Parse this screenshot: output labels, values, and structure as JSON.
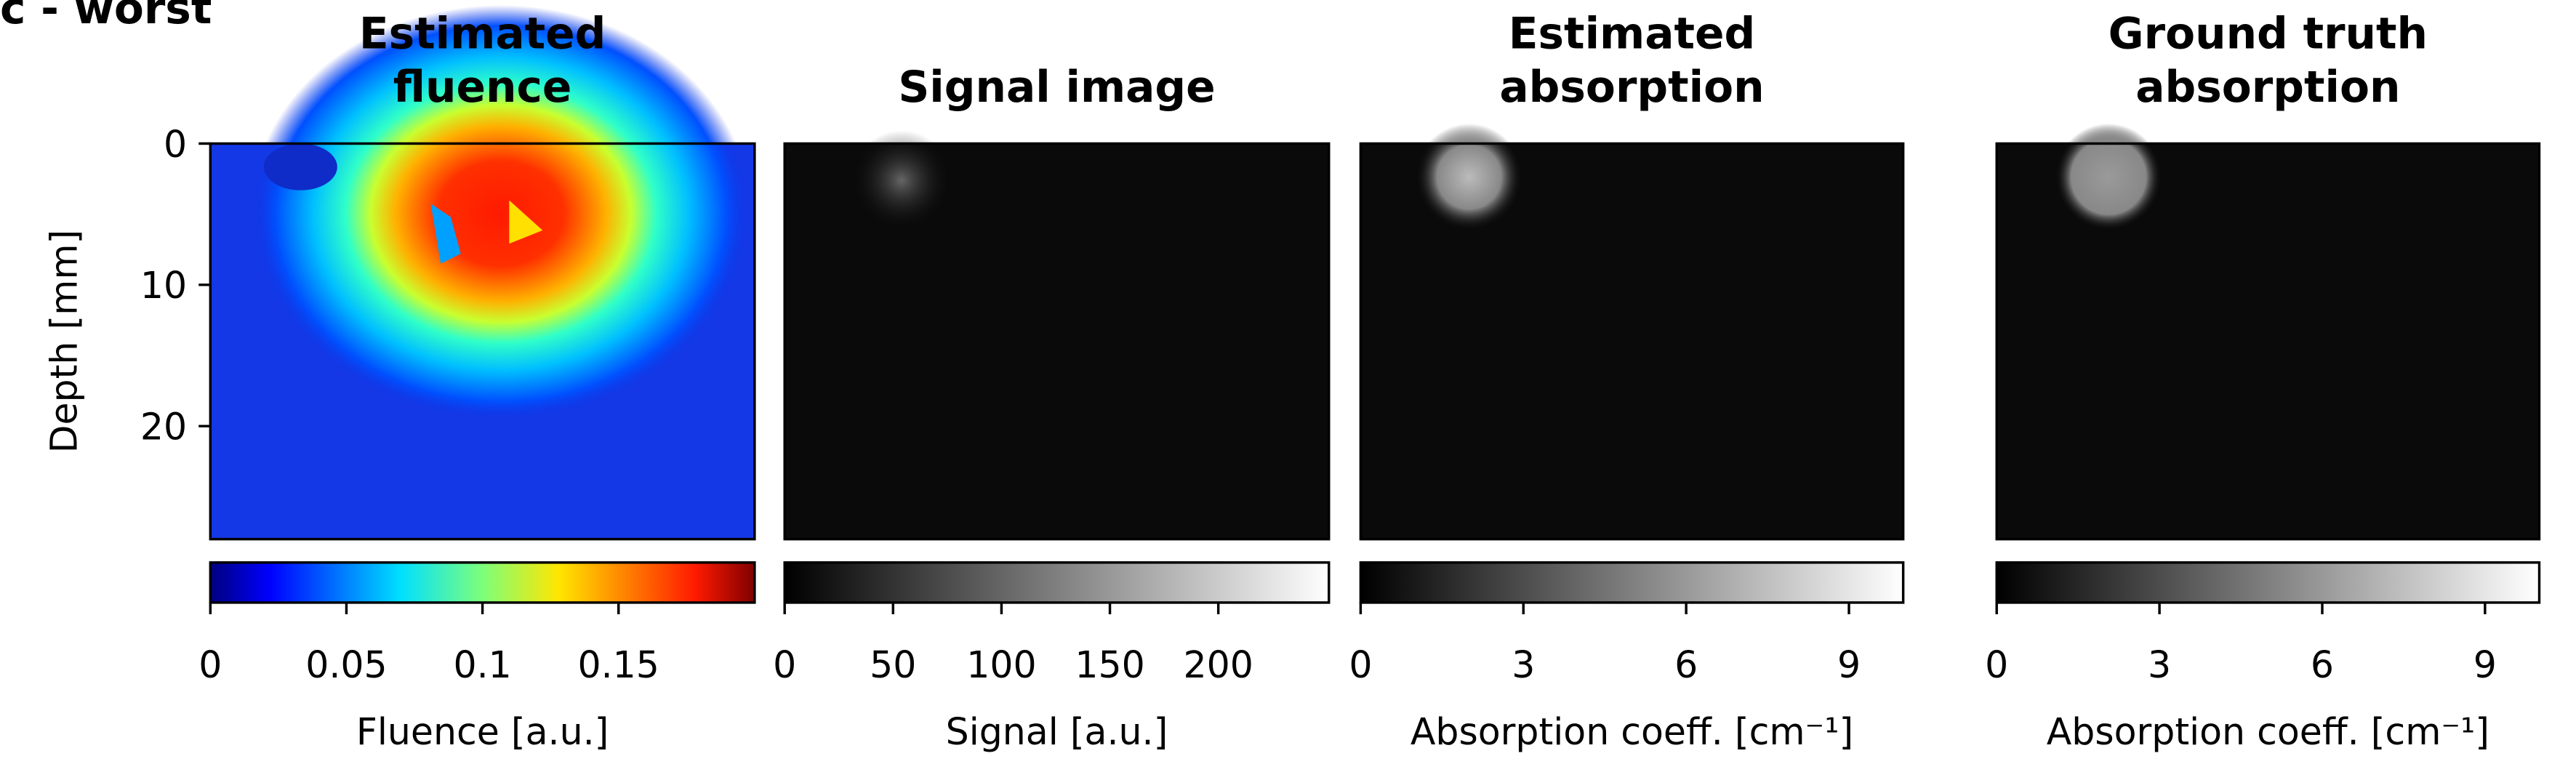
{
  "panel_label": "c - worst",
  "chart_data": [
    {
      "type": "heatmap",
      "title": "Estimated\nfluence",
      "ylabel": "Depth [mm]",
      "ylim": [
        0,
        28
      ],
      "yticks": [
        0,
        10,
        20
      ],
      "colormap": "jet",
      "colorbar_label": "Fluence [a.u.]",
      "colorbar_lim": [
        0,
        0.2
      ],
      "colorbar_ticks": [
        0,
        0.05,
        0.1,
        0.15
      ]
    },
    {
      "type": "heatmap",
      "title": "Signal image",
      "ylim": [
        0,
        28
      ],
      "colormap": "gray",
      "colorbar_label": "Signal [a.u.]",
      "colorbar_lim": [
        0,
        251
      ],
      "colorbar_ticks": [
        0,
        50,
        100,
        150,
        200
      ]
    },
    {
      "type": "heatmap",
      "title": "Estimated\nabsorption",
      "ylim": [
        0,
        28
      ],
      "colormap": "gray",
      "colorbar_label": "Absorption coeff. [cm⁻¹]",
      "colorbar_lim": [
        0,
        10
      ],
      "colorbar_ticks": [
        0,
        3,
        6,
        9
      ]
    },
    {
      "type": "heatmap",
      "title": "Ground truth\nabsorption",
      "ylim": [
        0,
        28
      ],
      "colormap": "gray",
      "colorbar_label": "Absorption coeff. [cm⁻¹]",
      "colorbar_lim": [
        0,
        10
      ],
      "colorbar_ticks": [
        0,
        3,
        6,
        9
      ]
    }
  ]
}
